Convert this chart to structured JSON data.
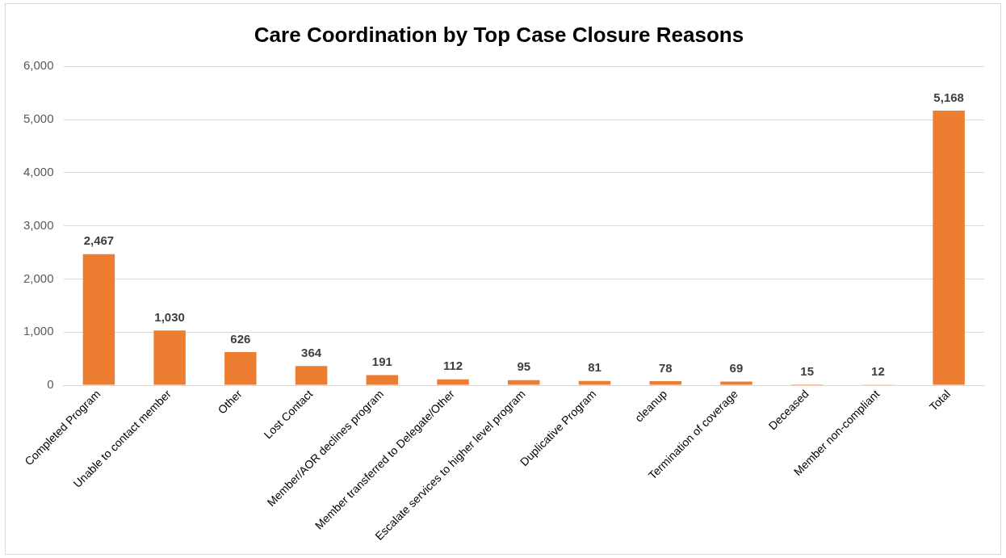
{
  "chart_data": {
    "type": "bar",
    "title": "Care Coordination by Top Case Closure Reasons",
    "categories": [
      "Completed Program",
      "Unable to contact member",
      "Other",
      "Lost Contact",
      "Member/AOR declines program",
      "Member transferred to Delegate/Other",
      "Escalate services to higher level program",
      "Duplicative Program",
      "cleanup",
      "Termination of coverage",
      "Deceased",
      "Member non-compliant",
      "Total"
    ],
    "values": [
      2467,
      1030,
      626,
      364,
      191,
      112,
      95,
      81,
      78,
      69,
      15,
      12,
      5168
    ],
    "color": "#ed7d31",
    "ylim": [
      0,
      6000
    ],
    "yticks": [
      {
        "value": 0,
        "label": "0"
      },
      {
        "value": 1000,
        "label": "1,000"
      },
      {
        "value": 2000,
        "label": "2,000"
      },
      {
        "value": 3000,
        "label": "3,000"
      },
      {
        "value": 4000,
        "label": "4,000"
      },
      {
        "value": 5000,
        "label": "5,000"
      },
      {
        "value": 6000,
        "label": "6,000"
      }
    ],
    "value_labels": [
      "2,467",
      "1,030",
      "626",
      "364",
      "191",
      "112",
      "95",
      "81",
      "78",
      "69",
      "15",
      "12",
      "5,168"
    ],
    "grid": "y",
    "legend": false
  }
}
